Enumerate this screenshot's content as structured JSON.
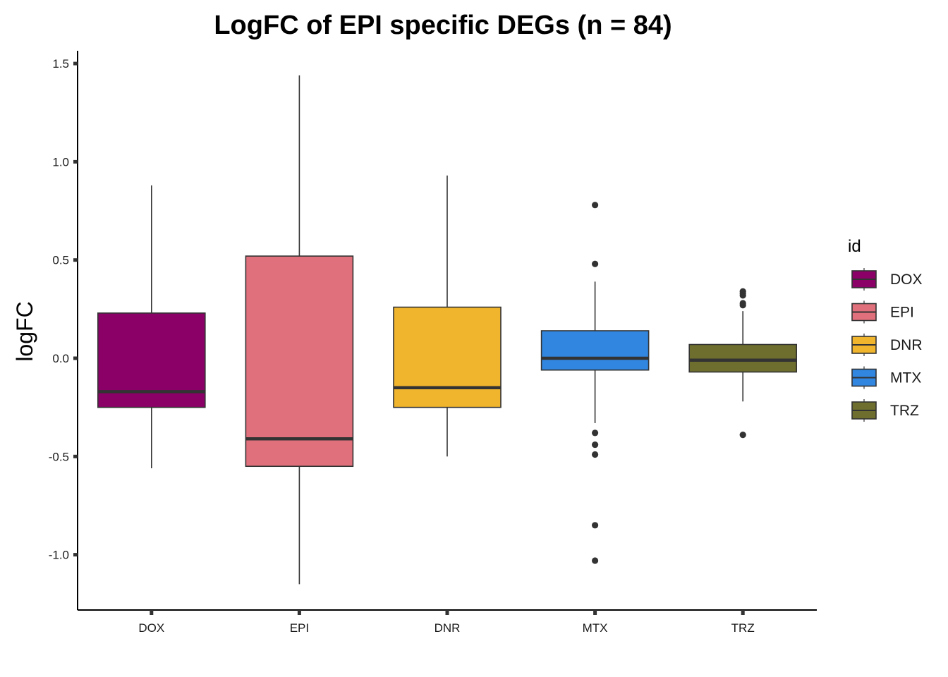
{
  "chart_data": {
    "type": "box",
    "title": "LogFC of EPI specific DEGs (n = 84)",
    "xlabel": "",
    "ylabel": "logFC",
    "ylim": [
      -1.28,
      1.57
    ],
    "yticks": [
      1.5,
      1.0,
      0.5,
      0.0,
      -0.5,
      -1.0
    ],
    "ytick_labels": [
      "1.5",
      "1.0",
      "0.5",
      "0.0",
      "-0.5",
      "-1.0"
    ],
    "categories": [
      "DOX",
      "EPI",
      "DNR",
      "MTX",
      "TRZ"
    ],
    "grid": false,
    "legend": {
      "title": "id",
      "position": "right"
    },
    "series": [
      {
        "name": "DOX",
        "color": "#8B0066",
        "whisker_low": -0.56,
        "q1": -0.25,
        "median": -0.17,
        "q3": 0.23,
        "whisker_high": 0.88,
        "outliers": []
      },
      {
        "name": "EPI",
        "color": "#E0717C",
        "whisker_low": -1.15,
        "q1": -0.55,
        "median": -0.41,
        "q3": 0.52,
        "whisker_high": 1.44,
        "outliers": []
      },
      {
        "name": "DNR",
        "color": "#F0B52C",
        "whisker_low": -0.5,
        "q1": -0.25,
        "median": -0.15,
        "q3": 0.26,
        "whisker_high": 0.93,
        "outliers": []
      },
      {
        "name": "MTX",
        "color": "#3186E0",
        "whisker_low": -0.33,
        "q1": -0.06,
        "median": 0.0,
        "q3": 0.14,
        "whisker_high": 0.39,
        "outliers": [
          0.78,
          0.48,
          -0.38,
          -0.44,
          -0.49,
          -0.85,
          -1.03
        ]
      },
      {
        "name": "TRZ",
        "color": "#6E6E2E",
        "whisker_low": -0.22,
        "q1": -0.07,
        "median": -0.01,
        "q3": 0.07,
        "whisker_high": 0.24,
        "outliers": [
          0.34,
          0.33,
          0.32,
          0.28,
          0.27,
          -0.39
        ]
      }
    ]
  }
}
